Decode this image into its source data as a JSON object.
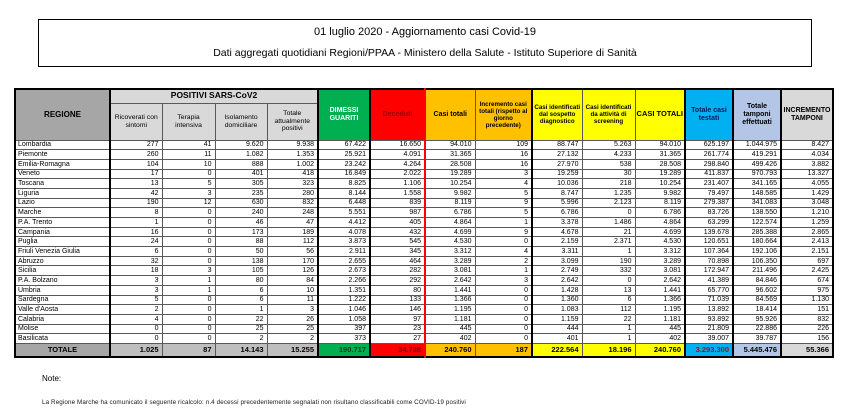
{
  "title": {
    "line1": "01 luglio 2020 - Aggiornamento casi Covid-19",
    "line2": "Dati aggregati quotidiani Regioni/PPAA - Ministero della Salute - Istituto Superiore di Sanità"
  },
  "table": {
    "region_header": "REGIONE",
    "group_header": "POSITIVI SARS-CoV2",
    "columns": [
      "Ricoverati con sintomi",
      "Terapia intensiva",
      "Isolamento domiciliare",
      "Totale attualmente positivi",
      "DIMESSI GUARITI",
      "Deceduti",
      "Casi totali",
      "Incremento casi totali (rispetto al giorno precedente)",
      "Casi identificati dal sospetto diagnostico",
      "Casi identificati da attività di screening",
      "CASI TOTALI",
      "Totale casi testati",
      "Totale tamponi effettuati",
      "INCREMENTO TAMPONI"
    ],
    "rows": [
      {
        "region": "Lombardia",
        "values": [
          "277",
          "41",
          "9.620",
          "9.938",
          "67.422",
          "16.650",
          "94.010",
          "109",
          "88.747",
          "5.263",
          "94.010",
          "625.197",
          "1.044.975",
          "8.427"
        ]
      },
      {
        "region": "Piemonte",
        "values": [
          "260",
          "11",
          "1.082",
          "1.353",
          "25.921",
          "4.091",
          "31.365",
          "16",
          "27.132",
          "4.233",
          "31.365",
          "261.774",
          "419.291",
          "4.034"
        ]
      },
      {
        "region": "Emilia-Romagna",
        "values": [
          "104",
          "10",
          "888",
          "1.002",
          "23.242",
          "4.264",
          "28.508",
          "16",
          "27.970",
          "538",
          "28.508",
          "298.840",
          "499.426",
          "3.882"
        ]
      },
      {
        "region": "Veneto",
        "values": [
          "17",
          "0",
          "401",
          "418",
          "16.849",
          "2.022",
          "19.289",
          "3",
          "19.259",
          "30",
          "19.289",
          "411.837",
          "970.793",
          "13.327"
        ]
      },
      {
        "region": "Toscana",
        "values": [
          "13",
          "5",
          "305",
          "323",
          "8.825",
          "1.106",
          "10.254",
          "4",
          "10.036",
          "218",
          "10.254",
          "231.407",
          "341.165",
          "4.055"
        ]
      },
      {
        "region": "Liguria",
        "values": [
          "42",
          "3",
          "235",
          "280",
          "8.144",
          "1.558",
          "9.982",
          "5",
          "8.747",
          "1.235",
          "9.982",
          "79.497",
          "148.585",
          "1.429"
        ]
      },
      {
        "region": "Lazio",
        "values": [
          "190",
          "12",
          "630",
          "832",
          "6.448",
          "839",
          "8.119",
          "9",
          "5.996",
          "2.123",
          "8.119",
          "279.387",
          "341.083",
          "3.048"
        ]
      },
      {
        "region": "Marche",
        "values": [
          "8",
          "0",
          "240",
          "248",
          "5.551",
          "987",
          "6.786",
          "5",
          "6.786",
          "0",
          "6.786",
          "83.726",
          "138.550",
          "1.210"
        ]
      },
      {
        "region": "P.A. Trento",
        "values": [
          "1",
          "0",
          "46",
          "47",
          "4.412",
          "405",
          "4.864",
          "1",
          "3.378",
          "1.486",
          "4.864",
          "63.299",
          "122.574",
          "1.259"
        ]
      },
      {
        "region": "Campania",
        "values": [
          "16",
          "0",
          "173",
          "189",
          "4.078",
          "432",
          "4.699",
          "9",
          "4.678",
          "21",
          "4.699",
          "139.678",
          "285.388",
          "2.865"
        ]
      },
      {
        "region": "Puglia",
        "values": [
          "24",
          "0",
          "88",
          "112",
          "3.873",
          "545",
          "4.530",
          "0",
          "2.159",
          "2.371",
          "4.530",
          "120.651",
          "180.664",
          "2.413"
        ]
      },
      {
        "region": "Friuli Venezia Giulia",
        "values": [
          "6",
          "0",
          "50",
          "56",
          "2.911",
          "345",
          "3.312",
          "4",
          "3.311",
          "1",
          "3.312",
          "107.364",
          "192.106",
          "2.151"
        ]
      },
      {
        "region": "Abruzzo",
        "values": [
          "32",
          "0",
          "138",
          "170",
          "2.655",
          "464",
          "3.289",
          "2",
          "3.099",
          "190",
          "3.289",
          "70.898",
          "106.350",
          "697"
        ]
      },
      {
        "region": "Sicilia",
        "values": [
          "18",
          "3",
          "105",
          "126",
          "2.673",
          "282",
          "3.081",
          "1",
          "2.749",
          "332",
          "3.081",
          "172.947",
          "211.496",
          "2.425"
        ]
      },
      {
        "region": "P.A. Bolzano",
        "values": [
          "3",
          "1",
          "80",
          "84",
          "2.266",
          "292",
          "2.642",
          "3",
          "2.642",
          "0",
          "2.642",
          "41.389",
          "84.846",
          "674"
        ]
      },
      {
        "region": "Umbria",
        "values": [
          "3",
          "1",
          "6",
          "10",
          "1.351",
          "80",
          "1.441",
          "0",
          "1.428",
          "13",
          "1.441",
          "65.770",
          "96.602",
          "975"
        ]
      },
      {
        "region": "Sardegna",
        "values": [
          "5",
          "0",
          "6",
          "11",
          "1.222",
          "133",
          "1.366",
          "0",
          "1.360",
          "6",
          "1.366",
          "71.039",
          "84.569",
          "1.130"
        ]
      },
      {
        "region": "Valle d'Aosta",
        "values": [
          "2",
          "0",
          "1",
          "3",
          "1.046",
          "146",
          "1.195",
          "0",
          "1.083",
          "112",
          "1.195",
          "13.892",
          "18.414",
          "151"
        ]
      },
      {
        "region": "Calabria",
        "values": [
          "4",
          "0",
          "22",
          "26",
          "1.058",
          "97",
          "1.181",
          "0",
          "1.159",
          "22",
          "1.181",
          "93.892",
          "95.926",
          "832"
        ]
      },
      {
        "region": "Molise",
        "values": [
          "0",
          "0",
          "25",
          "25",
          "397",
          "23",
          "445",
          "0",
          "444",
          "1",
          "445",
          "21.809",
          "22.886",
          "226"
        ]
      },
      {
        "region": "Basilicata",
        "values": [
          "0",
          "0",
          "2",
          "2",
          "373",
          "27",
          "402",
          "0",
          "401",
          "1",
          "402",
          "39.007",
          "39.787",
          "156"
        ]
      }
    ],
    "total_row": {
      "region": "TOTALE",
      "values": [
        "1.025",
        "87",
        "14.143",
        "15.255",
        "190.717",
        "34.788",
        "240.760",
        "187",
        "222.564",
        "18.196",
        "240.760",
        "3.293.300",
        "5.445.476",
        "55.366"
      ]
    }
  },
  "note": {
    "heading": "Note:",
    "line": "La Regione Marche ha comunicato il seguente ricalcolo: n.4 decessi precedentemente segnalati non risultano classificabili come COVID-19 positivi"
  },
  "colors": {
    "regione_header": "#a6a6a6",
    "subheader_gray": "#d9d9d9",
    "guariti_green": "#00b050",
    "deceduti_red": "#ff0000",
    "casi_totali_orange": "#ffc000",
    "casi_identificati_yellow": "#ffff00",
    "casi_testati_blue": "#00b0f0",
    "tamponi_periwinkle": "#b4c6e7",
    "total_row_gray": "#bfbfbf"
  }
}
